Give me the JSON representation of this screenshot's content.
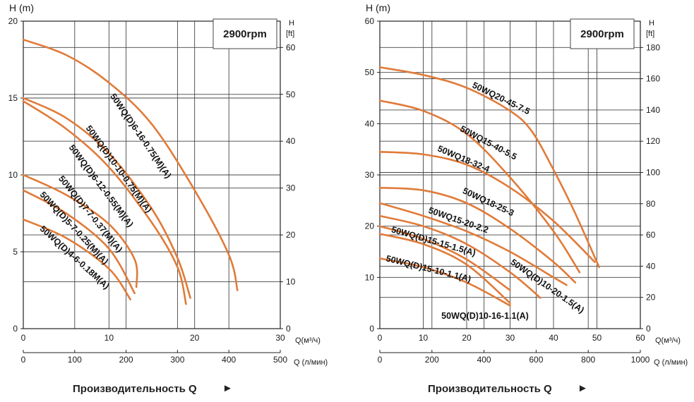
{
  "curve_color": "#e07b39",
  "chart_data": [
    {
      "type": "line",
      "speed_label": "2900rpm",
      "y_label_left": "H (m)",
      "y_label_right": "H",
      "y_label_right_unit": "[ft]",
      "x_label_top": "Q(м³/ч)",
      "x_label_bottom": "Q (л/мин)",
      "footer": "Производительность Q",
      "footer_arrow": "►",
      "xlim": [
        0,
        30
      ],
      "ylim": [
        0,
        20
      ],
      "x_ticks": [
        0,
        10,
        20,
        30
      ],
      "x_ticks_lpm": [
        0,
        100,
        200,
        300,
        400,
        500
      ],
      "y_ticks": [
        0,
        5,
        10,
        15,
        20
      ],
      "y_ticks_ft": [
        0,
        10,
        20,
        30,
        40,
        50,
        60
      ],
      "series": [
        {
          "name": "50WQ(D)6-16-0.75(M)(A)",
          "x": [
            0,
            5,
            10,
            15,
            20,
            24,
            25
          ],
          "y": [
            18.8,
            17.8,
            16.0,
            13.3,
            9.0,
            4.8,
            2.5
          ]
        },
        {
          "name": "50WQ(D)10-10-0.75(M)(A)",
          "x": [
            0,
            5,
            10,
            15,
            18,
            19.5
          ],
          "y": [
            15.0,
            13.7,
            11.4,
            7.8,
            4.6,
            2.0
          ]
        },
        {
          "name": "50WQ(D)6-12-0.55(M)(A)",
          "x": [
            0,
            5,
            10,
            15,
            18,
            19
          ],
          "y": [
            14.8,
            13.0,
            10.5,
            6.9,
            4.0,
            1.6
          ]
        },
        {
          "name": "50WQ(D)7-7-0.37(M)(A)",
          "x": [
            0,
            5,
            10,
            13,
            13.2
          ],
          "y": [
            10.0,
            8.7,
            6.8,
            4.5,
            2.7
          ]
        },
        {
          "name": "50WQ(D)5-7-0.25(M)(A)",
          "x": [
            0,
            5,
            10,
            13
          ],
          "y": [
            9.0,
            7.5,
            5.2,
            2.3
          ]
        },
        {
          "name": "50WQ(D)4-6-0.18M(A)",
          "x": [
            0,
            5,
            10,
            12.5
          ],
          "y": [
            7.1,
            5.9,
            3.9,
            1.9
          ]
        }
      ]
    },
    {
      "type": "line",
      "speed_label": "2900rpm",
      "y_label_left": "H (m)",
      "y_label_right": "H",
      "y_label_right_unit": "[ft]",
      "x_label_top": "Q(м³/ч)",
      "x_label_bottom": "Q (л/мин)",
      "footer": "Производительность Q",
      "footer_arrow": "►",
      "xlim": [
        0,
        60
      ],
      "ylim": [
        0,
        60
      ],
      "x_ticks": [
        0,
        10,
        20,
        30,
        40,
        50,
        60
      ],
      "x_ticks_lpm": [
        0,
        200,
        400,
        600,
        800,
        1000
      ],
      "y_ticks": [
        0,
        10,
        20,
        30,
        40,
        50,
        60
      ],
      "y_ticks_ft": [
        0,
        20,
        40,
        60,
        80,
        100,
        120,
        140,
        160,
        180
      ],
      "series": [
        {
          "name": "50WQ20-45-7.5",
          "x": [
            0,
            10,
            20,
            30,
            35,
            40,
            45,
            50.5
          ],
          "y": [
            51.0,
            49.5,
            47.0,
            42.5,
            38.5,
            31.0,
            22.5,
            12.0
          ]
        },
        {
          "name": "50WQ15-40-5.5",
          "x": [
            0,
            10,
            20,
            30,
            40,
            46
          ],
          "y": [
            44.5,
            42.5,
            38.0,
            29.5,
            19.0,
            11.0
          ]
        },
        {
          "name": "50WQ18-32-4",
          "x": [
            0,
            10,
            20,
            30,
            40,
            49.5
          ],
          "y": [
            34.5,
            34.0,
            32.0,
            27.5,
            21.0,
            13.0
          ]
        },
        {
          "name": "50WQ18-25-3",
          "x": [
            0,
            10,
            20,
            30,
            40,
            45
          ],
          "y": [
            27.5,
            27.0,
            24.5,
            19.5,
            13.0,
            9.0
          ]
        },
        {
          "name": "50WQ15-20-2.2",
          "x": [
            0,
            10,
            20,
            30,
            40,
            43
          ],
          "y": [
            24.5,
            22.0,
            19.0,
            15.0,
            10.0,
            8.5
          ]
        },
        {
          "name": "50WQ(D)10-20-1.5(A)",
          "x": [
            0,
            10,
            20,
            30,
            37
          ],
          "y": [
            22.0,
            20.0,
            16.5,
            11.0,
            6.0
          ]
        },
        {
          "name": "50WQ(D)15-15-1.5(A)",
          "x": [
            0,
            10,
            20,
            30
          ],
          "y": [
            20.0,
            17.5,
            13.5,
            7.5
          ]
        },
        {
          "name": "50WQ(D)10-16-1.1(A)",
          "x": [
            0,
            10,
            20,
            30
          ],
          "y": [
            18.5,
            16.5,
            12.5,
            5.0
          ]
        },
        {
          "name": "50WQ(D)15-10-1.1(A)",
          "x": [
            0,
            10,
            20,
            30
          ],
          "y": [
            13.7,
            12.0,
            9.0,
            4.5
          ]
        }
      ]
    }
  ]
}
